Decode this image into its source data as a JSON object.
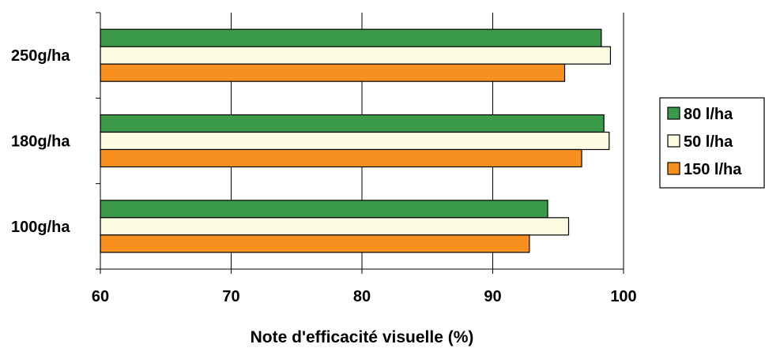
{
  "chart_data": {
    "type": "bar",
    "orientation": "horizontal",
    "categories": [
      "250g/ha",
      "180g/ha",
      "100g/ha"
    ],
    "series": [
      {
        "name": "80 l/ha",
        "color": "#3a9a4a",
        "values": [
          98.3,
          98.5,
          94.2
        ]
      },
      {
        "name": "50 l/ha",
        "color": "#fcfce0",
        "values": [
          99.0,
          98.9,
          95.8
        ]
      },
      {
        "name": "150 l/ha",
        "color": "#f7901e",
        "values": [
          95.5,
          96.8,
          92.8
        ]
      }
    ],
    "xlabel": "Note d'efficacité visuelle (%)",
    "xlim": [
      60,
      100
    ],
    "xticks": [
      60,
      70,
      80,
      90,
      100
    ],
    "grid": "vertical",
    "legend": "right"
  }
}
